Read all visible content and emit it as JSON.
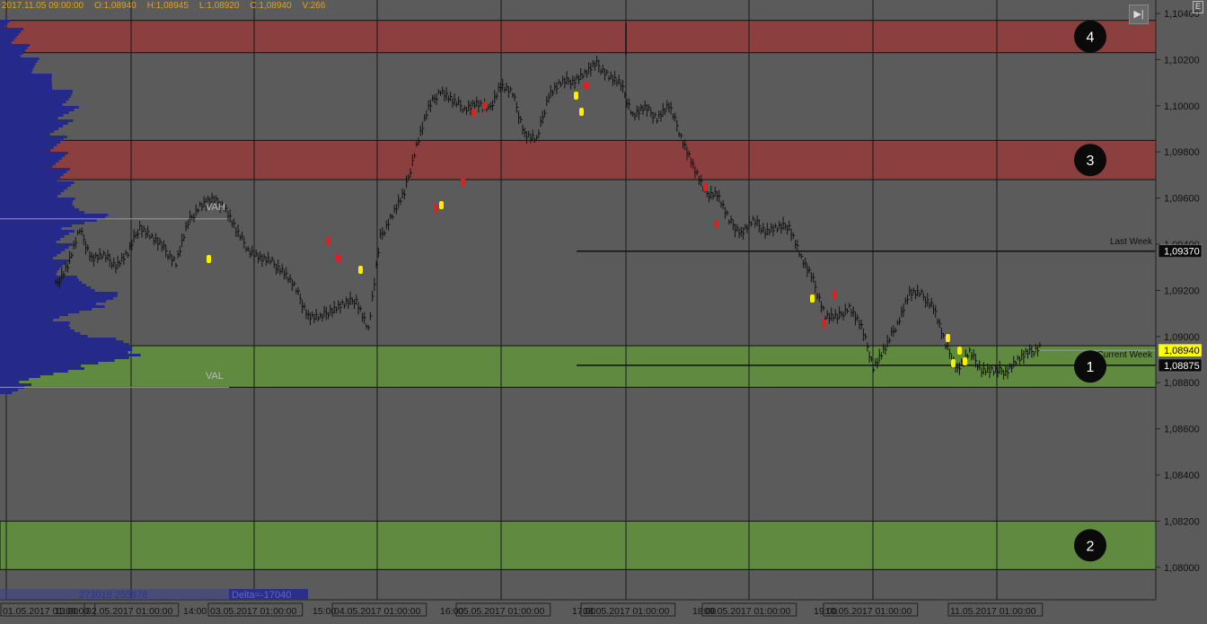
{
  "ohlc_header": {
    "date": "2017.11.05 09:00:00",
    "open": "O:1,08940",
    "high": "H:1,08945",
    "low": "L:1,08920",
    "close": "C:1,08940",
    "volume": "V:266"
  },
  "colors": {
    "background": "#5b5b5b",
    "resistance_zone": "#8b3f3f",
    "support_zone": "#5f8a3f",
    "volume_profile": "#252a8a",
    "candle": "#111111",
    "highlight_yellow": "#ffee00",
    "highlight_red": "#e02020",
    "price_tag_current": "#ffff00"
  },
  "icons": {
    "nav": "skip-forward-icon",
    "corner": "chart-menu-icon"
  },
  "labels": {
    "vah": "VAH",
    "val": "VAL",
    "last_week": "Last Week",
    "current_week": "Current Week",
    "volume_summary": "273018 255978",
    "delta": "Delta=-17040"
  },
  "chart_data": {
    "type": "line",
    "title": "",
    "ylim": [
      1.0795,
      1.1042
    ],
    "price_axis": [
      "1,10400",
      "1,10200",
      "1,10000",
      "1,09800",
      "1,09600",
      "1,09400",
      "1,09200",
      "1,09000",
      "1,08800",
      "1,08600",
      "1,08400",
      "1,08200",
      "1,08000"
    ],
    "price_axis_values": [
      1.104,
      1.102,
      1.1,
      1.098,
      1.096,
      1.094,
      1.092,
      1.09,
      1.088,
      1.086,
      1.084,
      1.082,
      1.08
    ],
    "time_axis": [
      "01.05.2017 01:00:00",
      "13:00",
      "02.05.2017 01:00:00",
      "14:00",
      "03.05.2017 01:00:00",
      "15:00",
      "04.05.2017 01:00:00",
      "16:00",
      "05.05.2017 01:00:00",
      "17:00",
      "08.05.2017 01:00:00",
      "18:00",
      "09.05.2017 01:00:00",
      "19:00",
      "10.05.2017 01:00:00",
      "11.05.2017 01:00:00"
    ],
    "zones": [
      {
        "label": "4",
        "type": "resistance",
        "from": 1.1023,
        "to": 1.1037
      },
      {
        "label": "3",
        "type": "resistance",
        "from": 1.0968,
        "to": 1.0985
      },
      {
        "label": "1",
        "type": "support",
        "from": 1.0878,
        "to": 1.0896
      },
      {
        "label": "2",
        "type": "support",
        "from": 1.0799,
        "to": 1.082
      }
    ],
    "levels": [
      {
        "name": "VAH",
        "value": 1.0951
      },
      {
        "name": "VAL",
        "value": 1.0878
      },
      {
        "name": "Last Week",
        "value": 1.0937,
        "tag": "1,09370"
      },
      {
        "name": "Current Week",
        "value": 1.08875,
        "tag": "1,08875"
      },
      {
        "name": "Close",
        "value": 1.0894,
        "tag": "1,08940"
      }
    ],
    "series": [
      {
        "values": [
          1.0922,
          1.0931,
          1.0946,
          1.0934,
          1.0935,
          1.0931,
          1.0936,
          1.0948,
          1.0943,
          1.0938,
          1.0932,
          1.0949,
          1.0957,
          1.0959,
          1.0957,
          1.0946,
          1.0938,
          1.0934,
          1.0932,
          1.0928,
          1.092,
          1.0909,
          1.0908,
          1.0912,
          1.0914,
          1.0916,
          1.0903,
          1.0943,
          1.0953,
          1.0962,
          1.0983,
          1.0999,
          1.1007,
          1.1002,
          1.0999,
          1.1001,
          1.0998,
          1.1009,
          1.1005,
          1.0988,
          1.0985,
          1.1005,
          1.101,
          1.1011,
          1.1014,
          1.1018,
          1.1013,
          1.1009,
          1.0996,
          1.0999,
          1.0995,
          1.1,
          1.0987,
          1.0974,
          1.0962,
          1.0962,
          1.095,
          1.0945,
          1.095,
          1.0946,
          1.0947,
          1.0948,
          1.0934,
          1.0924,
          1.0909,
          1.0908,
          1.0913,
          1.0904,
          1.0887,
          1.0895,
          1.0906,
          1.0919,
          1.0918,
          1.0913,
          1.0896,
          1.0886,
          1.0893,
          1.0886,
          1.0885,
          1.0885,
          1.089,
          1.0893,
          1.0896
        ]
      }
    ]
  }
}
